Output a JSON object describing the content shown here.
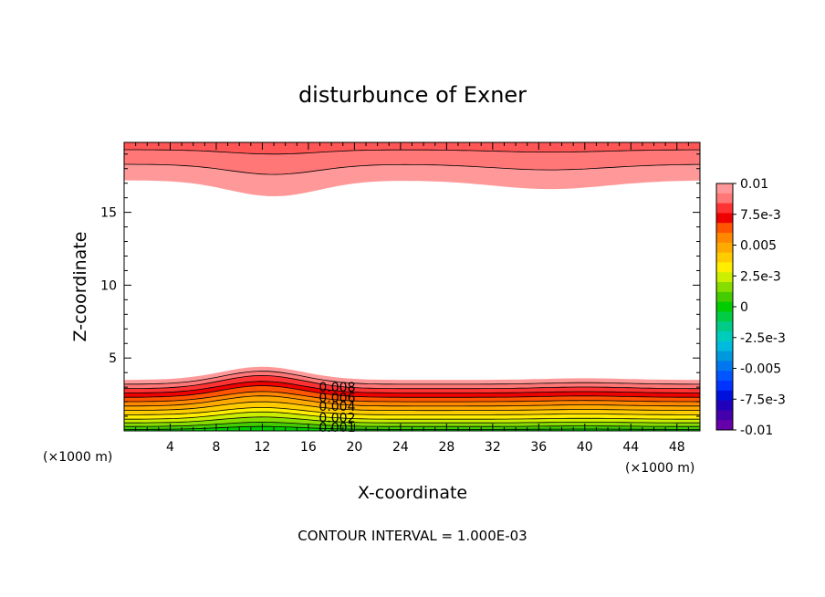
{
  "chart_data": {
    "type": "heatmap",
    "title": "disturbunce of Exner",
    "xlabel": "X-coordinate",
    "ylabel": "Z-coordinate",
    "x_unit": "(×1000 m)",
    "z_unit": "(×1000 m)",
    "xlim": [
      0,
      50
    ],
    "ylim": [
      0,
      19.8
    ],
    "xticks": [
      4,
      8,
      12,
      16,
      20,
      24,
      28,
      32,
      36,
      40,
      44,
      48
    ],
    "yticks": [
      5,
      10,
      15
    ],
    "footer": "CONTOUR INTERVAL = 1.000E-03",
    "colorbar": {
      "labels": [
        "0.01",
        "7.5e-3",
        "0.005",
        "2.5e-3",
        "0",
        "-2.5e-3",
        "-0.005",
        "-7.5e-3",
        "-0.01"
      ],
      "levels": [
        0.01,
        0.0075,
        0.005,
        0.0025,
        0,
        -0.0025,
        -0.005,
        -0.0075,
        -0.01
      ],
      "colors_top_to_bottom": [
        "#ff9999",
        "#ff7777",
        "#ff3333",
        "#ee0000",
        "#ff5500",
        "#ff8800",
        "#ffaa00",
        "#ffcc00",
        "#ffee00",
        "#ccee00",
        "#88dd00",
        "#44cc00",
        "#00cc00",
        "#00cc44",
        "#00cc88",
        "#00ccbb",
        "#00bbdd",
        "#0099dd",
        "#0077ee",
        "#0055ff",
        "#0033ff",
        "#0011dd",
        "#2200bb",
        "#4400aa",
        "#6600aa"
      ]
    },
    "contour_labels": [
      "0.008",
      "0.006",
      "0.004",
      "0.002",
      "0.001"
    ],
    "lower_bands": [
      {
        "color": "#ff9999",
        "z_flat": 3.5,
        "z_peak": 4.4
      },
      {
        "color": "#ff7777",
        "z_flat": 3.2,
        "z_peak": 4.1
      },
      {
        "color": "#ff3333",
        "z_flat": 2.9,
        "z_peak": 3.8
      },
      {
        "color": "#ee0000",
        "z_flat": 2.6,
        "z_peak": 3.4
      },
      {
        "color": "#ff5500",
        "z_flat": 2.3,
        "z_peak": 3.1
      },
      {
        "color": "#ff8800",
        "z_flat": 2.0,
        "z_peak": 2.7
      },
      {
        "color": "#ffaa00",
        "z_flat": 1.7,
        "z_peak": 2.4
      },
      {
        "color": "#ffcc00",
        "z_flat": 1.4,
        "z_peak": 2.0
      },
      {
        "color": "#ffee00",
        "z_flat": 1.1,
        "z_peak": 1.6
      },
      {
        "color": "#ccee00",
        "z_flat": 0.8,
        "z_peak": 1.3
      },
      {
        "color": "#88dd00",
        "z_flat": 0.55,
        "z_peak": 0.95
      },
      {
        "color": "#44cc00",
        "z_flat": 0.3,
        "z_peak": 0.6
      },
      {
        "color": "#00cc00",
        "z_flat": 0.1,
        "z_peak": 0.3
      }
    ],
    "upper_bands": [
      {
        "color": "#ff9999",
        "z_base": 17.2,
        "z_dip": 16.1
      },
      {
        "color": "#ff7777",
        "z_base": 18.3,
        "z_dip": 17.6
      },
      {
        "color": "#ff5555",
        "z_base": 19.3,
        "z_dip": 19.0
      }
    ]
  }
}
